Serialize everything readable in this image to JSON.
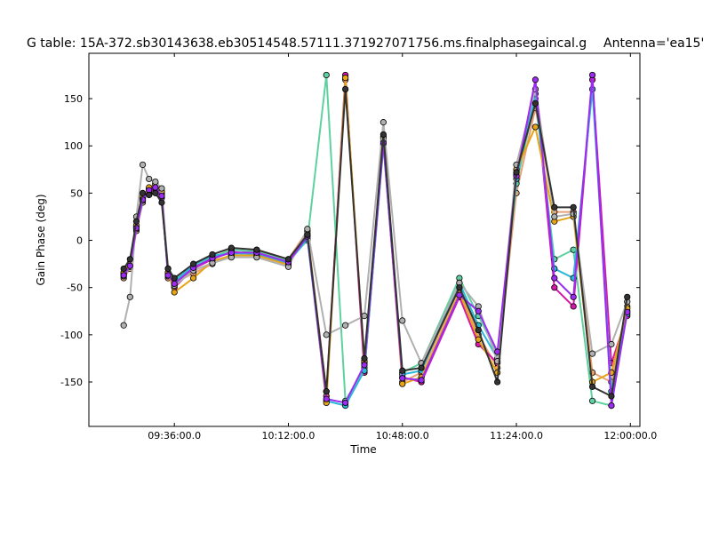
{
  "chart_data": {
    "type": "line",
    "title": "G table: 15A-372.sb30143638.eb30514548.57111.371927071756.ms.finalphasegaincal.g",
    "title_right": "Antenna='ea15'",
    "xlabel": "Time",
    "ylabel": "Gain Phase (deg)",
    "xlim": [
      "09:09:00",
      "12:03:00"
    ],
    "ylim": [
      -197,
      198
    ],
    "x_ticks": [
      "09:36:00.0",
      "10:12:00.0",
      "10:48:00.0",
      "11:24:00.0",
      "12:00:00.0"
    ],
    "y_ticks": [
      -150,
      -100,
      -50,
      0,
      50,
      100,
      150
    ],
    "grid": false,
    "legend": "none",
    "series": [
      {
        "color": "#e8a07a",
        "x": [
          "09:20:00",
          "09:22:00",
          "09:24:00",
          "09:26:00",
          "09:28:00",
          "09:30:00",
          "09:32:00",
          "09:34:00",
          "09:36:00",
          "09:42:00",
          "09:48:00",
          "09:54:00",
          "10:02:00",
          "10:12:00",
          "10:18:00",
          "10:24:00",
          "10:30:00",
          "10:36:00",
          "10:42:00",
          "10:48:00",
          "10:54:00",
          "11:06:00",
          "11:12:00",
          "11:18:00",
          "11:24:00",
          "11:30:00",
          "11:36:00",
          "11:42:00",
          "11:48:00",
          "11:54:00",
          "11:59:00"
        ],
        "y": [
          -40,
          -30,
          10,
          40,
          55,
          60,
          50,
          -40,
          -45,
          -35,
          -25,
          -15,
          -10,
          -20,
          10,
          -160,
          170,
          -130,
          110,
          -150,
          -140,
          -50,
          -100,
          -135,
          50,
          140,
          30,
          30,
          -140,
          -150,
          -70
        ]
      },
      {
        "color": "#d419a8",
        "x": [
          "09:20:00",
          "09:22:00",
          "09:24:00",
          "09:26:00",
          "09:28:00",
          "09:30:00",
          "09:32:00",
          "09:34:00",
          "09:36:00",
          "09:42:00",
          "09:48:00",
          "09:54:00",
          "10:02:00",
          "10:12:00",
          "10:18:00",
          "10:24:00",
          "10:30:00",
          "10:36:00",
          "10:42:00",
          "10:48:00",
          "10:54:00",
          "11:06:00",
          "11:12:00",
          "11:18:00",
          "11:24:00",
          "11:30:00",
          "11:36:00",
          "11:42:00",
          "11:48:00",
          "11:54:00",
          "11:59:00"
        ],
        "y": [
          -35,
          -25,
          15,
          45,
          50,
          55,
          45,
          -35,
          -50,
          -30,
          -20,
          -12,
          -15,
          -25,
          5,
          -165,
          175,
          -140,
          105,
          -145,
          -150,
          -60,
          -110,
          -130,
          70,
          160,
          -50,
          -70,
          170,
          -130,
          -80
        ]
      },
      {
        "color": "#5fd1a0",
        "x": [
          "09:20:00",
          "09:22:00",
          "09:24:00",
          "09:26:00",
          "09:28:00",
          "09:30:00",
          "09:32:00",
          "09:34:00",
          "09:36:00",
          "09:42:00",
          "09:48:00",
          "09:54:00",
          "10:02:00",
          "10:12:00",
          "10:18:00",
          "10:24:00",
          "10:30:00",
          "10:36:00",
          "10:42:00",
          "10:48:00",
          "10:54:00",
          "11:06:00",
          "11:12:00",
          "11:18:00",
          "11:24:00",
          "11:30:00",
          "11:36:00",
          "11:42:00",
          "11:48:00",
          "11:54:00",
          "11:59:00"
        ],
        "y": [
          -38,
          -28,
          12,
          42,
          52,
          58,
          48,
          -38,
          -42,
          -28,
          -18,
          -10,
          -12,
          -22,
          0,
          175,
          -170,
          -135,
          100,
          -140,
          -130,
          -40,
          -80,
          -120,
          60,
          150,
          -20,
          -10,
          -170,
          -175,
          -75
        ]
      },
      {
        "color": "#2ab8d8",
        "x": [
          "09:20:00",
          "09:22:00",
          "09:24:00",
          "09:26:00",
          "09:28:00",
          "09:30:00",
          "09:32:00",
          "09:34:00",
          "09:36:00",
          "09:42:00",
          "09:48:00",
          "09:54:00",
          "10:02:00",
          "10:12:00",
          "10:18:00",
          "10:24:00",
          "10:30:00",
          "10:36:00",
          "10:42:00",
          "10:48:00",
          "10:54:00",
          "11:06:00",
          "11:12:00",
          "11:18:00",
          "11:24:00",
          "11:30:00",
          "11:36:00",
          "11:42:00",
          "11:48:00",
          "11:54:00",
          "11:59:00"
        ],
        "y": [
          -36,
          -26,
          14,
          44,
          54,
          57,
          46,
          -36,
          -44,
          -26,
          -16,
          -14,
          -14,
          -24,
          2,
          -170,
          -175,
          -138,
          102,
          -142,
          -138,
          -45,
          -90,
          -125,
          65,
          155,
          -30,
          -40,
          160,
          -160,
          -78
        ]
      },
      {
        "color": "#e6a516",
        "x": [
          "09:20:00",
          "09:22:00",
          "09:24:00",
          "09:26:00",
          "09:28:00",
          "09:30:00",
          "09:32:00",
          "09:34:00",
          "09:36:00",
          "09:42:00",
          "09:48:00",
          "09:54:00",
          "10:02:00",
          "10:12:00",
          "10:18:00",
          "10:24:00",
          "10:30:00",
          "10:36:00",
          "10:42:00",
          "10:48:00",
          "10:54:00",
          "11:06:00",
          "11:12:00",
          "11:18:00",
          "11:24:00",
          "11:30:00",
          "11:36:00",
          "11:42:00",
          "11:48:00",
          "11:54:00",
          "11:59:00"
        ],
        "y": [
          -34,
          -24,
          16,
          46,
          56,
          59,
          52,
          -34,
          -55,
          -40,
          -22,
          -16,
          -16,
          -26,
          8,
          -172,
          172,
          -128,
          108,
          -152,
          -145,
          -55,
          -105,
          -140,
          75,
          120,
          20,
          25,
          -150,
          -140,
          -72
        ]
      },
      {
        "color": "#b0b0b0",
        "x": [
          "09:20:00",
          "09:22:00",
          "09:24:00",
          "09:26:00",
          "09:28:00",
          "09:30:00",
          "09:32:00",
          "09:34:00",
          "09:36:00",
          "09:42:00",
          "09:48:00",
          "09:54:00",
          "10:02:00",
          "10:12:00",
          "10:18:00",
          "10:24:00",
          "10:30:00",
          "10:36:00",
          "10:42:00",
          "10:48:00",
          "10:54:00",
          "11:06:00",
          "11:12:00",
          "11:18:00",
          "11:24:00",
          "11:30:00",
          "11:36:00",
          "11:42:00",
          "11:48:00",
          "11:54:00",
          "11:59:00"
        ],
        "y": [
          -90,
          -60,
          25,
          80,
          65,
          62,
          55,
          -30,
          -48,
          -32,
          -24,
          -18,
          -18,
          -28,
          12,
          -100,
          -90,
          -80,
          125,
          -85,
          -130,
          -45,
          -70,
          -128,
          80,
          160,
          25,
          28,
          -120,
          -110,
          -65
        ]
      },
      {
        "color": "#9b2cf0",
        "x": [
          "09:20:00",
          "09:22:00",
          "09:24:00",
          "09:26:00",
          "09:28:00",
          "09:30:00",
          "09:32:00",
          "09:34:00",
          "09:36:00",
          "09:42:00",
          "09:48:00",
          "09:54:00",
          "10:02:00",
          "10:12:00",
          "10:18:00",
          "10:24:00",
          "10:30:00",
          "10:36:00",
          "10:42:00",
          "10:48:00",
          "10:54:00",
          "11:06:00",
          "11:12:00",
          "11:18:00",
          "11:24:00",
          "11:30:00",
          "11:36:00",
          "11:42:00",
          "11:48:00",
          "11:54:00",
          "11:59:00"
        ],
        "y": [
          -37,
          -27,
          13,
          43,
          53,
          56,
          47,
          -37,
          -46,
          -29,
          -19,
          -13,
          -13,
          -23,
          4,
          -168,
          -172,
          -132,
          103,
          -146,
          -148,
          -58,
          -75,
          -118,
          68,
          170,
          -40,
          -60,
          175,
          -175,
          -76
        ]
      },
      {
        "color": "#333333",
        "x": [
          "09:20:00",
          "09:22:00",
          "09:24:00",
          "09:26:00",
          "09:28:00",
          "09:30:00",
          "09:32:00",
          "09:34:00",
          "09:36:00",
          "09:42:00",
          "09:48:00",
          "09:54:00",
          "10:02:00",
          "10:12:00",
          "10:18:00",
          "10:24:00",
          "10:30:00",
          "10:36:00",
          "10:42:00",
          "10:48:00",
          "10:54:00",
          "11:06:00",
          "11:12:00",
          "11:18:00",
          "11:24:00",
          "11:30:00",
          "11:36:00",
          "11:42:00",
          "11:48:00",
          "11:54:00",
          "11:59:00"
        ],
        "y": [
          -30,
          -20,
          20,
          50,
          48,
          50,
          40,
          -30,
          -40,
          -25,
          -15,
          -8,
          -10,
          -20,
          6,
          -160,
          160,
          -125,
          112,
          -138,
          -135,
          -50,
          -95,
          -150,
          72,
          145,
          35,
          35,
          -155,
          -165,
          -60
        ]
      }
    ]
  }
}
